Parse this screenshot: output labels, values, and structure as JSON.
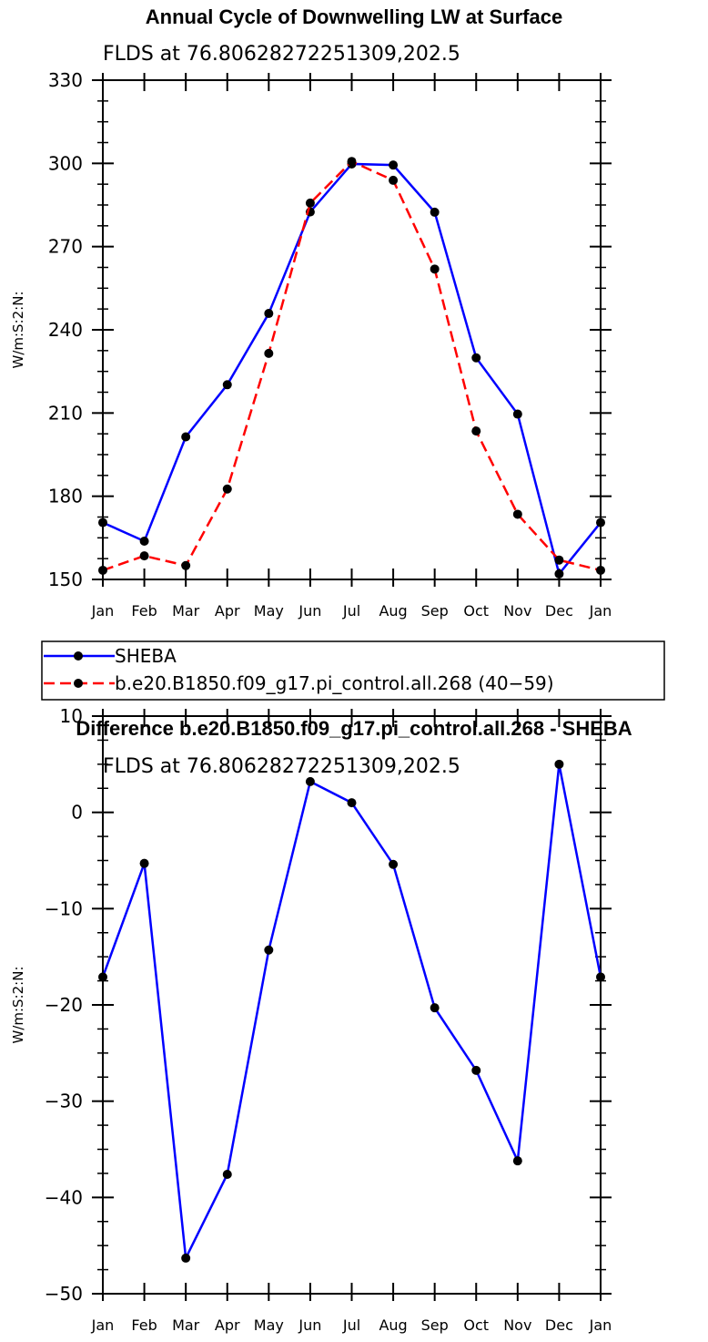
{
  "chart_data": [
    {
      "type": "line",
      "title": "Annual Cycle of Downwelling LW at Surface",
      "subtitle": "FLDS at 76.80628272251309,202.5",
      "ylabel": "W/m:S:2:N:",
      "xlabel": "",
      "categories": [
        "Jan",
        "Feb",
        "Mar",
        "Apr",
        "May",
        "Jun",
        "Jul",
        "Aug",
        "Sep",
        "Oct",
        "Nov",
        "Dec",
        "Jan"
      ],
      "ylim": [
        150,
        330
      ],
      "yticks": [
        150,
        180,
        210,
        240,
        270,
        300,
        330
      ],
      "grid": false,
      "legend": "below",
      "series": [
        {
          "name": "SHEBA",
          "color": "#0000ff",
          "dash": "solid",
          "values": [
            170.5,
            163.8,
            201.4,
            220.2,
            245.9,
            282.5,
            299.8,
            299.4,
            282.4,
            229.9,
            209.6,
            152.0,
            170.5
          ]
        },
        {
          "name": "b.e20.B1850.f09_g17.pi_control.all.268 (40−59)",
          "color": "#ff0000",
          "dash": "dashed",
          "values": [
            153.3,
            158.5,
            155.0,
            182.6,
            231.5,
            285.7,
            300.7,
            293.9,
            261.9,
            203.5,
            173.5,
            157.0,
            153.3
          ]
        }
      ]
    },
    {
      "type": "line",
      "title": "Difference b.e20.B1850.f09_g17.pi_control.all.268 - SHEBA",
      "subtitle": "FLDS at 76.80628272251309,202.5",
      "ylabel": "W/m:S:2:N:",
      "xlabel": "",
      "categories": [
        "Jan",
        "Feb",
        "Mar",
        "Apr",
        "May",
        "Jun",
        "Jul",
        "Aug",
        "Sep",
        "Oct",
        "Nov",
        "Dec",
        "Jan"
      ],
      "ylim": [
        -50,
        10
      ],
      "yticks": [
        -50,
        -40,
        -30,
        -20,
        -10,
        0,
        10
      ],
      "grid": false,
      "series": [
        {
          "color": "#0000ff",
          "dash": "solid",
          "values": [
            -17.1,
            -5.3,
            -46.3,
            -37.6,
            -14.3,
            3.2,
            1.0,
            -5.4,
            -20.3,
            -26.8,
            -36.2,
            5.0,
            -17.1
          ]
        }
      ]
    }
  ]
}
